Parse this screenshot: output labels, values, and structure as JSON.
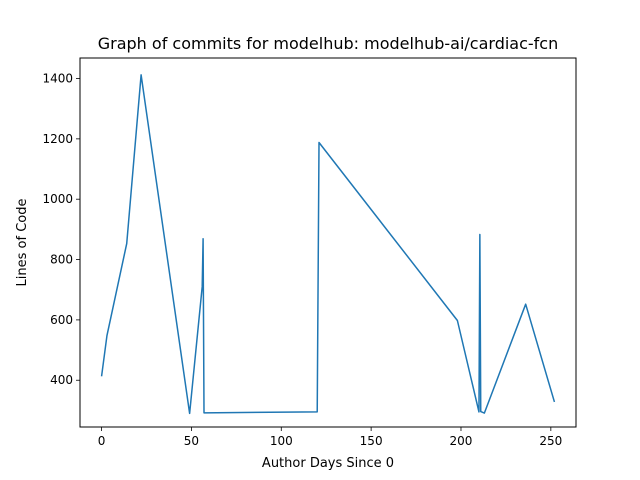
{
  "chart_data": {
    "type": "line",
    "title": "Graph of commits for modelhub: modelhub-ai/cardiac-fcn",
    "xlabel": "Author Days Since 0",
    "ylabel": "Lines of Code",
    "xlim": [
      -12,
      264
    ],
    "ylim": [
      245,
      1468
    ],
    "xticks": [
      0,
      50,
      100,
      150,
      200,
      250
    ],
    "yticks": [
      400,
      600,
      800,
      1000,
      1200,
      1400
    ],
    "grid": false,
    "line_color": "#1f77b4",
    "series": [
      {
        "x": [
          0,
          3,
          14,
          22,
          49,
          56,
          56.5,
          57,
          120,
          121,
          198,
          210,
          210.5,
          211,
          213,
          236,
          252
        ],
        "y": [
          413,
          548,
          853,
          1412,
          290,
          710,
          869,
          292,
          295,
          1188,
          598,
          295,
          883,
          296,
          291,
          652,
          328
        ]
      }
    ]
  }
}
